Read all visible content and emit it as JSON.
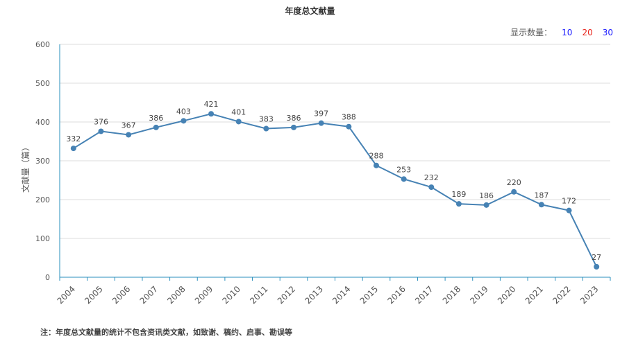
{
  "title": "年度总文献量",
  "display_count": {
    "label": "显示数量：",
    "options": [
      "10",
      "20",
      "30"
    ],
    "colors": [
      "#1a1aff",
      "#e8231a",
      "#1a1aff"
    ]
  },
  "note": "注：年度总文献量的统计不包含资讯类文献，如致谢、稿约、启事、勘误等",
  "chart_data": {
    "type": "line",
    "title": "年度总文献量",
    "xlabel": "",
    "ylabel": "文献量（篇）",
    "ylim": [
      0,
      600
    ],
    "yticks": [
      0,
      100,
      200,
      300,
      400,
      500,
      600
    ],
    "grid": true,
    "line_color": "#4682b4",
    "axis_color": "#2a8fbd",
    "categories": [
      "2004",
      "2005",
      "2006",
      "2007",
      "2008",
      "2009",
      "2010",
      "2011",
      "2012",
      "2013",
      "2014",
      "2015",
      "2016",
      "2017",
      "2018",
      "2019",
      "2020",
      "2021",
      "2022",
      "2023"
    ],
    "values": [
      332,
      376,
      367,
      386,
      403,
      421,
      401,
      383,
      386,
      397,
      388,
      288,
      253,
      232,
      189,
      186,
      220,
      187,
      172,
      27
    ]
  }
}
